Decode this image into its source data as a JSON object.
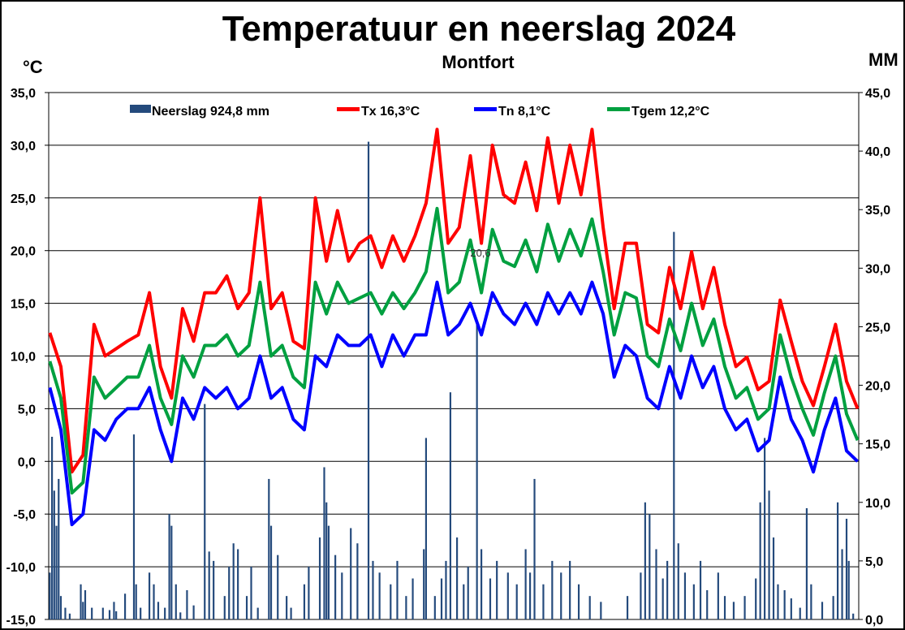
{
  "chart_data": {
    "type": "line+bar",
    "title": "Temperatuur en neerslag 2024",
    "subtitle": "Montfort",
    "ylabel_left": "°C",
    "ylabel_right": "MM",
    "ylim_left": [
      -15,
      35
    ],
    "ylim_right": [
      0,
      45
    ],
    "yticks_left": [
      "35,0",
      "30,0",
      "25,0",
      "20,0",
      "15,0",
      "10,0",
      "5,0",
      "0,0",
      "-5,0",
      "-10,0",
      "-15,0"
    ],
    "yticks_right": [
      "45,0",
      "40,0",
      "35,0",
      "30,0",
      "25,0",
      "20,0",
      "15,0",
      "10,0",
      "5,0",
      "0,0"
    ],
    "grid": true,
    "legend_position": "top",
    "annotation": "20,6",
    "x_days": 366,
    "temp_sample_days": [
      1,
      6,
      11,
      16,
      21,
      26,
      31,
      36,
      41,
      46,
      51,
      56,
      61,
      66,
      71,
      76,
      81,
      86,
      91,
      96,
      101,
      106,
      111,
      116,
      121,
      126,
      131,
      136,
      141,
      146,
      151,
      156,
      161,
      166,
      171,
      176,
      181,
      186,
      191,
      196,
      201,
      206,
      211,
      216,
      221,
      226,
      231,
      236,
      241,
      246,
      251,
      256,
      261,
      266,
      271,
      276,
      281,
      286,
      291,
      296,
      301,
      306,
      311,
      316,
      321,
      326,
      331,
      336,
      341,
      346,
      351,
      356,
      361,
      366
    ],
    "series": [
      {
        "name": "Tx 16,3°C",
        "color": "#ff0000",
        "values": [
          12.2,
          9,
          -1,
          0.6,
          13,
          10,
          10.7,
          11.4,
          12,
          16,
          9,
          6,
          14.5,
          11.4,
          16,
          16,
          17.6,
          14.5,
          16,
          25,
          14.5,
          16,
          11.4,
          10.7,
          25,
          19,
          23.8,
          19,
          20.7,
          21.4,
          18.4,
          21.4,
          19,
          21.4,
          24.5,
          31.5,
          20.7,
          22.2,
          29,
          20.7,
          30,
          25.3,
          24.5,
          28.4,
          23.8,
          30.7,
          24.5,
          30,
          25.3,
          31.5,
          22.2,
          14.5,
          20.7,
          20.7,
          13,
          12.2,
          18.4,
          14.5,
          19.9,
          14.5,
          18.4,
          13,
          9,
          9.9,
          6.8,
          7.6,
          15.3,
          11.4,
          7.6,
          5.3,
          9,
          13,
          7.6,
          5
        ]
      },
      {
        "name": "Tn 8,1°C",
        "color": "#0000ff",
        "values": [
          7,
          3,
          -6,
          -5,
          3,
          2,
          4,
          5,
          5,
          7,
          3,
          0,
          6,
          4,
          7,
          6,
          7,
          5,
          6,
          10,
          6,
          7,
          4,
          3,
          10,
          9,
          12,
          11,
          11,
          12,
          9,
          12,
          10,
          12,
          12,
          17,
          12,
          13,
          15,
          12,
          16,
          14,
          13,
          15,
          13,
          16,
          14,
          16,
          14,
          17,
          14,
          8,
          11,
          10,
          6,
          5,
          9,
          6,
          10,
          7,
          9,
          5,
          3,
          4,
          1,
          2,
          8,
          4,
          2,
          -1,
          3,
          6,
          1,
          0
        ]
      },
      {
        "name": "Tgem 12,2°C",
        "color": "#00a040",
        "values": [
          9.5,
          6,
          -3,
          -2,
          8,
          6,
          7,
          8,
          8,
          11,
          6,
          3.5,
          10,
          8,
          11,
          11,
          12,
          10,
          11,
          17,
          10,
          11,
          8,
          7,
          17,
          14,
          17,
          15,
          15.5,
          16,
          14,
          16,
          14.5,
          16,
          18,
          24,
          16,
          17,
          21,
          16,
          22,
          19,
          18.5,
          21,
          18,
          22.5,
          19,
          22,
          19.5,
          23,
          18,
          12,
          16,
          15.5,
          10,
          9,
          13.5,
          10.5,
          15,
          11,
          13.5,
          9,
          6,
          7,
          4,
          5,
          12,
          8,
          5,
          2.5,
          6.5,
          10,
          4.5,
          2
        ]
      }
    ],
    "precipitation": {
      "name": "Neerslag 924,8 mm",
      "color": "#244a7c",
      "day_mm": [
        [
          1,
          4
        ],
        [
          2,
          15.6
        ],
        [
          3,
          11
        ],
        [
          4,
          8
        ],
        [
          5,
          12
        ],
        [
          6,
          2
        ],
        [
          8,
          1
        ],
        [
          10,
          0.5
        ],
        [
          15,
          3
        ],
        [
          16,
          1.5
        ],
        [
          17,
          2.5
        ],
        [
          20,
          1
        ],
        [
          25,
          1
        ],
        [
          28,
          0.8
        ],
        [
          30,
          1.5
        ],
        [
          31,
          0.7
        ],
        [
          35,
          2.2
        ],
        [
          39,
          15.8
        ],
        [
          40,
          3
        ],
        [
          42,
          1
        ],
        [
          46,
          4
        ],
        [
          48,
          3
        ],
        [
          50,
          1.5
        ],
        [
          53,
          1
        ],
        [
          55,
          9
        ],
        [
          56,
          8
        ],
        [
          58,
          3
        ],
        [
          60,
          0.6
        ],
        [
          63,
          2.5
        ],
        [
          66,
          1.2
        ],
        [
          71,
          18.4
        ],
        [
          73,
          5.8
        ],
        [
          75,
          5
        ],
        [
          80,
          2
        ],
        [
          82,
          4.5
        ],
        [
          84,
          6.5
        ],
        [
          86,
          6
        ],
        [
          90,
          2
        ],
        [
          92,
          4.5
        ],
        [
          95,
          1
        ],
        [
          100,
          12
        ],
        [
          101,
          8
        ],
        [
          104,
          5.5
        ],
        [
          108,
          2
        ],
        [
          110,
          1
        ],
        [
          116,
          3
        ],
        [
          118,
          4.5
        ],
        [
          123,
          7
        ],
        [
          125,
          13
        ],
        [
          126,
          10
        ],
        [
          127,
          8
        ],
        [
          130,
          5.5
        ],
        [
          133,
          4
        ],
        [
          137,
          7.8
        ],
        [
          140,
          6.5
        ],
        [
          145,
          40.8
        ],
        [
          147,
          5
        ],
        [
          150,
          4
        ],
        [
          155,
          3
        ],
        [
          158,
          5
        ],
        [
          162,
          2
        ],
        [
          165,
          3.5
        ],
        [
          170,
          6
        ],
        [
          171,
          15.5
        ],
        [
          175,
          2
        ],
        [
          178,
          3.5
        ],
        [
          180,
          5
        ],
        [
          182,
          19.4
        ],
        [
          185,
          7
        ],
        [
          188,
          3
        ],
        [
          190,
          4.5
        ],
        [
          194,
          25.3
        ],
        [
          196,
          6
        ],
        [
          200,
          3.5
        ],
        [
          203,
          5
        ],
        [
          208,
          4
        ],
        [
          212,
          3
        ],
        [
          216,
          6
        ],
        [
          218,
          4
        ],
        [
          220,
          12
        ],
        [
          224,
          3
        ],
        [
          228,
          5
        ],
        [
          232,
          4
        ],
        [
          236,
          5
        ],
        [
          240,
          3
        ],
        [
          245,
          2
        ],
        [
          250,
          1.5
        ],
        [
          262,
          2
        ],
        [
          268,
          4
        ],
        [
          270,
          10
        ],
        [
          272,
          9
        ],
        [
          275,
          6
        ],
        [
          278,
          3.5
        ],
        [
          280,
          5
        ],
        [
          283,
          33.1
        ],
        [
          285,
          6.5
        ],
        [
          288,
          4
        ],
        [
          292,
          3
        ],
        [
          295,
          5
        ],
        [
          298,
          2.5
        ],
        [
          303,
          4
        ],
        [
          306,
          2
        ],
        [
          310,
          1.5
        ],
        [
          315,
          2
        ],
        [
          320,
          3.5
        ],
        [
          322,
          10
        ],
        [
          324,
          15.5
        ],
        [
          326,
          11
        ],
        [
          328,
          7
        ],
        [
          330,
          3
        ],
        [
          333,
          2.5
        ],
        [
          336,
          1.8
        ],
        [
          340,
          1
        ],
        [
          343,
          9.5
        ],
        [
          345,
          3
        ],
        [
          350,
          1.5
        ],
        [
          355,
          2
        ],
        [
          357,
          10
        ],
        [
          359,
          6
        ],
        [
          361,
          8.6
        ],
        [
          362,
          5
        ],
        [
          364,
          0.5
        ]
      ]
    }
  }
}
